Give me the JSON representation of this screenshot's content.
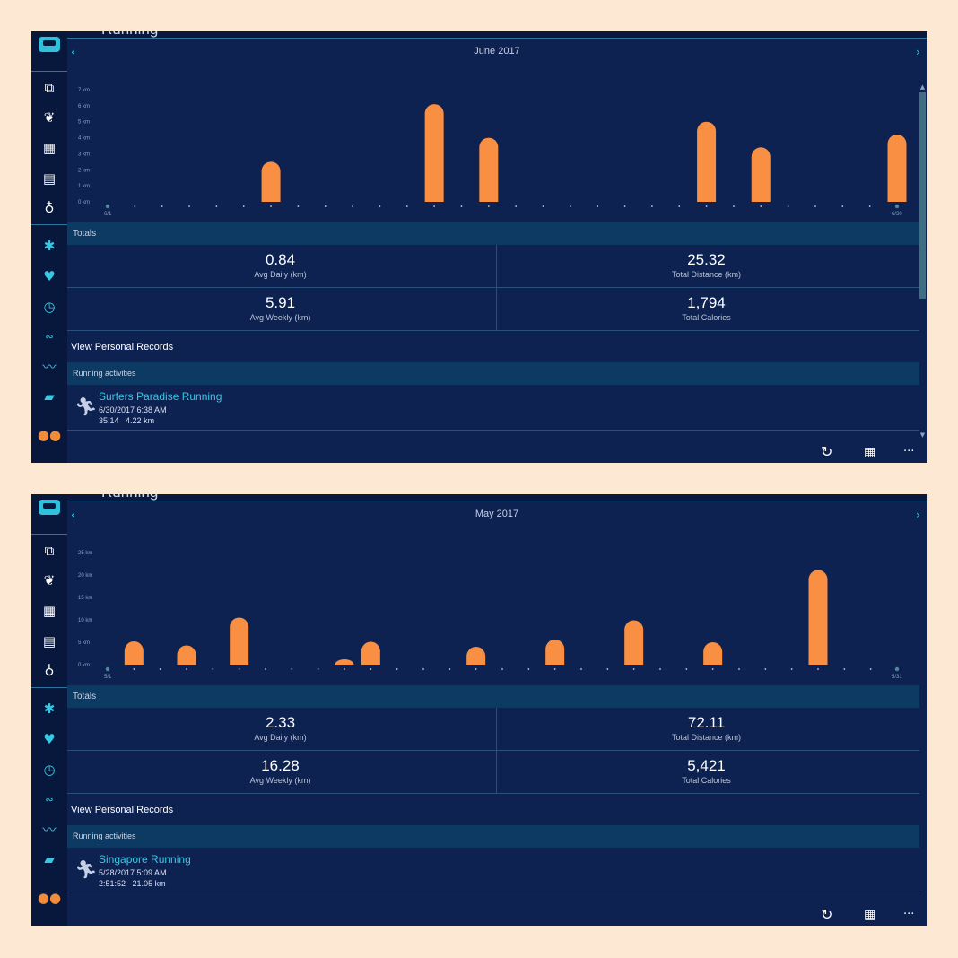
{
  "section_title": "Running",
  "colors": {
    "bar": "#f98f43",
    "panel": "#0d2251",
    "accent": "#39c8e4"
  },
  "sidebar_icons": [
    "logo-icon",
    "windows-icon",
    "laurel-icon",
    "calendar-icon",
    "news-icon",
    "lightbulb-icon",
    "fitness-icon",
    "heart-icon",
    "stopwatch-icon",
    "bike-icon",
    "trend-icon",
    "shoe-icon",
    "people-icon"
  ],
  "panels": [
    {
      "id": "june",
      "month": "June 2017",
      "chart_data": {
        "type": "bar",
        "xlabel": "",
        "ylabel": "",
        "y_ticks": [
          "0 km",
          "1 km",
          "2 km",
          "3 km",
          "4 km",
          "5 km",
          "6 km",
          "7 km"
        ],
        "ylim": [
          0,
          7
        ],
        "start_label": "6/1",
        "end_label": "6/30",
        "days": 30,
        "values": [
          0,
          0,
          0,
          0,
          0,
          0,
          2.5,
          0,
          0,
          0,
          0,
          0,
          6.1,
          0,
          4.0,
          0,
          0,
          0,
          0,
          0,
          0,
          0,
          5.0,
          0,
          3.4,
          0,
          0,
          0,
          0,
          4.2
        ]
      },
      "totals_label": "Totals",
      "stats": {
        "avg_daily": {
          "value": "0.84",
          "label": "Avg Daily (km)"
        },
        "total_distance": {
          "value": "25.32",
          "label": "Total Distance (km)"
        },
        "avg_weekly": {
          "value": "5.91",
          "label": "Avg Weekly (km)"
        },
        "total_calories": {
          "value": "1,794",
          "label": "Total Calories"
        }
      },
      "records_label": "View Personal Records",
      "activities_label": "Running activities",
      "activity": {
        "name": "Surfers Paradise Running",
        "date": "6/30/2017 6:38 AM",
        "duration": "35:14",
        "distance": "4.22 km"
      }
    },
    {
      "id": "may",
      "month": "May 2017",
      "chart_data": {
        "type": "bar",
        "xlabel": "",
        "ylabel": "",
        "y_ticks": [
          "0 km",
          "5 km",
          "10 km",
          "15 km",
          "20 km",
          "25 km"
        ],
        "ylim": [
          0,
          25
        ],
        "start_label": "5/1",
        "end_label": "5/31",
        "days": 31,
        "values": [
          0,
          5.2,
          0,
          4.3,
          0,
          10.5,
          0,
          0,
          0,
          1.2,
          5.1,
          0,
          0,
          0,
          4.0,
          0,
          0,
          5.6,
          0,
          0,
          9.9,
          0,
          0,
          5.0,
          0,
          0,
          0,
          21.1,
          0,
          0,
          0
        ]
      },
      "totals_label": "Totals",
      "stats": {
        "avg_daily": {
          "value": "2.33",
          "label": "Avg Daily (km)"
        },
        "total_distance": {
          "value": "72.11",
          "label": "Total Distance (km)"
        },
        "avg_weekly": {
          "value": "16.28",
          "label": "Avg Weekly (km)"
        },
        "total_calories": {
          "value": "5,421",
          "label": "Total Calories"
        }
      },
      "records_label": "View Personal Records",
      "activities_label": "Running activities",
      "activity": {
        "name": "Singapore Running",
        "date": "5/28/2017 5:09 AM",
        "duration": "2:51:52",
        "distance": "21.05 km"
      }
    }
  ],
  "appbar": {
    "refresh_icon": "refresh-icon",
    "calendar_icon": "calendar-icon",
    "more_label": "···"
  }
}
